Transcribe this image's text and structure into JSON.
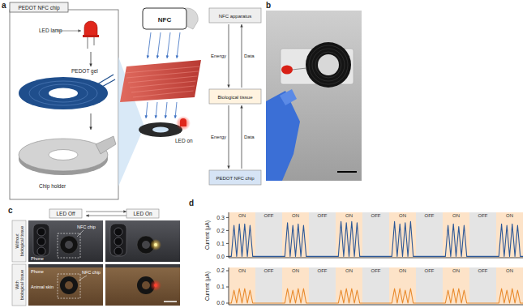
{
  "figure": {
    "panel_a": {
      "label": "a",
      "chip_box_title": "PEDOT NFC chip",
      "parts": [
        "LED lamp",
        "PEDOT gel",
        "Chip holder"
      ],
      "phone_label": "NFC",
      "led_label": "LED on",
      "flow": {
        "nodes": [
          "NFC apparatus",
          "Biological tissue",
          "PEDOT NFC chip"
        ],
        "edges": [
          "Energy",
          "Data",
          "Energy",
          "Data"
        ]
      }
    },
    "panel_b": {
      "label": "b"
    },
    "panel_c": {
      "label": "c",
      "columns": [
        "LED Off",
        "LED On"
      ],
      "rows": [
        "Without biological tissue",
        "With biological tissue"
      ],
      "row1_labels": [
        "Phone",
        "NFC chip"
      ],
      "row2_labels": [
        "Phone",
        "Animal skin",
        "NFC chip"
      ]
    },
    "panel_d": {
      "label": "d"
    }
  },
  "chart_data": [
    {
      "type": "line",
      "y_label": "Current (μA)",
      "tick_labels": "y",
      "xlim": [
        0,
        11
      ],
      "ylim": [
        -0.01,
        0.34
      ],
      "yticks": [
        {
          "value": 0,
          "label": "0.0"
        },
        0.1,
        0.2,
        0.3
      ],
      "bands": [
        {
          "label": "ON",
          "start": 0,
          "end": 1
        },
        {
          "label": "OFF",
          "start": 1,
          "end": 2
        },
        {
          "label": "ON",
          "start": 2,
          "end": 3
        },
        {
          "label": "OFF",
          "start": 3,
          "end": 4
        },
        {
          "label": "ON",
          "start": 4,
          "end": 5
        },
        {
          "label": "OFF",
          "start": 5,
          "end": 6
        },
        {
          "label": "ON",
          "start": 6,
          "end": 7
        },
        {
          "label": "OFF",
          "start": 7,
          "end": 8
        },
        {
          "label": "ON",
          "start": 8,
          "end": 9
        },
        {
          "label": "OFF",
          "start": 9,
          "end": 10
        },
        {
          "label": "ON",
          "start": 10,
          "end": 11
        }
      ],
      "x": [
        0,
        0.1,
        0.2,
        0.3,
        0.4,
        0.5,
        0.6,
        0.7,
        0.8,
        0.9,
        2.1,
        2.2,
        2.3,
        2.4,
        2.5,
        2.6,
        2.7,
        2.8,
        2.9,
        4.1,
        4.2,
        4.3,
        4.4,
        4.5,
        4.6,
        4.7,
        4.8,
        4.9,
        6.1,
        6.2,
        6.3,
        6.4,
        6.5,
        6.6,
        6.7,
        6.8,
        6.9,
        8.1,
        8.2,
        8.3,
        8.4,
        8.5,
        8.6,
        8.7,
        8.8,
        8.9,
        10.1,
        10.2,
        10.3,
        10.4,
        10.5,
        10.6,
        10.7,
        10.8,
        10.9,
        11
      ],
      "series": [
        {
          "color": "#2b5797",
          "values": [
            0,
            0,
            0.24,
            0,
            0.25,
            0,
            0.25,
            0,
            0.24,
            0,
            0,
            0.26,
            0,
            0.24,
            0,
            0.25,
            0,
            0.24,
            0,
            0,
            0.27,
            0,
            0.26,
            0,
            0.27,
            0,
            0.26,
            0,
            0,
            0.27,
            0,
            0.25,
            0,
            0.26,
            0,
            0.27,
            0,
            0,
            0.24,
            0,
            0.25,
            0,
            0.23,
            0,
            0.24,
            0,
            0,
            0.25,
            0,
            0.24,
            0,
            0.25,
            0,
            0.24,
            0,
            0
          ]
        }
      ]
    },
    {
      "type": "line",
      "y_label": "Current (μA)",
      "tick_labels": "y",
      "xlim": [
        0,
        11
      ],
      "ylim": [
        -0.01,
        0.22
      ],
      "yticks": [
        {
          "value": 0,
          "label": "0.0"
        },
        0.1,
        0.2
      ],
      "bands": [
        {
          "label": "ON",
          "start": 0,
          "end": 1
        },
        {
          "label": "OFF",
          "start": 1,
          "end": 2
        },
        {
          "label": "ON",
          "start": 2,
          "end": 3
        },
        {
          "label": "OFF",
          "start": 3,
          "end": 4
        },
        {
          "label": "ON",
          "start": 4,
          "end": 5
        },
        {
          "label": "OFF",
          "start": 5,
          "end": 6
        },
        {
          "label": "ON",
          "start": 6,
          "end": 7
        },
        {
          "label": "OFF",
          "start": 7,
          "end": 8
        },
        {
          "label": "ON",
          "start": 8,
          "end": 9
        },
        {
          "label": "OFF",
          "start": 9,
          "end": 10
        },
        {
          "label": "ON",
          "start": 10,
          "end": 11
        }
      ],
      "x": [
        0,
        0.1,
        0.2,
        0.3,
        0.4,
        0.5,
        0.6,
        0.7,
        0.8,
        0.9,
        2.1,
        2.2,
        2.3,
        2.4,
        2.5,
        2.6,
        2.7,
        2.8,
        2.9,
        4.1,
        4.2,
        4.3,
        4.4,
        4.5,
        4.6,
        4.7,
        4.8,
        4.9,
        6.1,
        6.2,
        6.3,
        6.4,
        6.5,
        6.6,
        6.7,
        6.8,
        6.9,
        8.1,
        8.2,
        8.3,
        8.4,
        8.5,
        8.6,
        8.7,
        8.8,
        8.9,
        10.1,
        10.2,
        10.3,
        10.4,
        10.5,
        10.6,
        10.7,
        10.8,
        10.9,
        11
      ],
      "series": [
        {
          "color": "#e8892b",
          "values": [
            0,
            0,
            0.08,
            0,
            0.09,
            0,
            0.09,
            0,
            0.08,
            0,
            0,
            0.09,
            0,
            0.08,
            0,
            0.09,
            0,
            0.09,
            0,
            0,
            0.08,
            0,
            0.09,
            0,
            0.09,
            0,
            0.08,
            0,
            0,
            0.09,
            0,
            0.09,
            0,
            0.08,
            0,
            0.09,
            0,
            0,
            0.08,
            0,
            0.09,
            0,
            0.09,
            0,
            0.08,
            0,
            0,
            0.09,
            0,
            0.08,
            0,
            0.09,
            0,
            0.08,
            0,
            0
          ]
        }
      ]
    }
  ]
}
